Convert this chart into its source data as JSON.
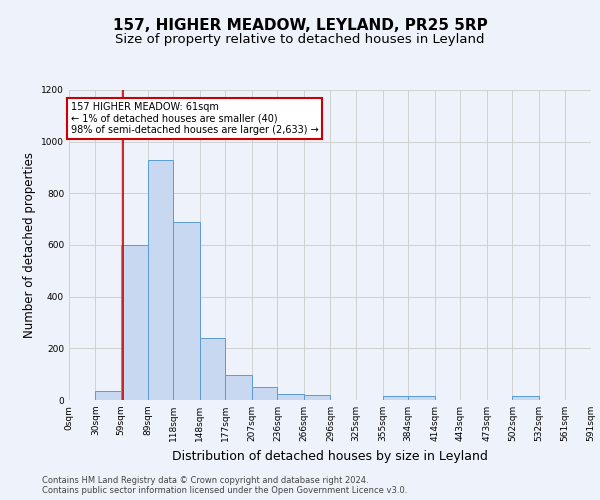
{
  "title": "157, HIGHER MEADOW, LEYLAND, PR25 5RP",
  "subtitle": "Size of property relative to detached houses in Leyland",
  "xlabel": "Distribution of detached houses by size in Leyland",
  "ylabel": "Number of detached properties",
  "bin_edges": [
    0,
    30,
    59,
    89,
    118,
    148,
    177,
    207,
    236,
    266,
    296,
    325,
    355,
    384,
    414,
    443,
    473,
    502,
    532,
    561,
    591
  ],
  "bin_labels": [
    "0sqm",
    "30sqm",
    "59sqm",
    "89sqm",
    "118sqm",
    "148sqm",
    "177sqm",
    "207sqm",
    "236sqm",
    "266sqm",
    "296sqm",
    "325sqm",
    "355sqm",
    "384sqm",
    "414sqm",
    "443sqm",
    "473sqm",
    "502sqm",
    "532sqm",
    "561sqm",
    "591sqm"
  ],
  "counts": [
    0,
    35,
    600,
    930,
    690,
    240,
    95,
    50,
    25,
    20,
    0,
    0,
    15,
    15,
    0,
    0,
    0,
    15,
    0,
    0
  ],
  "bar_color": "#c8d8f0",
  "bar_edge_color": "#5b9bd5",
  "grid_color": "#d0d0d0",
  "red_line_x": 61,
  "annotation_box_text": "157 HIGHER MEADOW: 61sqm\n← 1% of detached houses are smaller (40)\n98% of semi-detached houses are larger (2,633) →",
  "annotation_box_color": "#cc0000",
  "ylim": [
    0,
    1200
  ],
  "yticks": [
    0,
    200,
    400,
    600,
    800,
    1000,
    1200
  ],
  "footer_line1": "Contains HM Land Registry data © Crown copyright and database right 2024.",
  "footer_line2": "Contains public sector information licensed under the Open Government Licence v3.0.",
  "title_fontsize": 11,
  "subtitle_fontsize": 9.5,
  "ylabel_fontsize": 8.5,
  "xlabel_fontsize": 9,
  "tick_fontsize": 6.5,
  "footer_fontsize": 6,
  "background_color": "#eef2fa"
}
